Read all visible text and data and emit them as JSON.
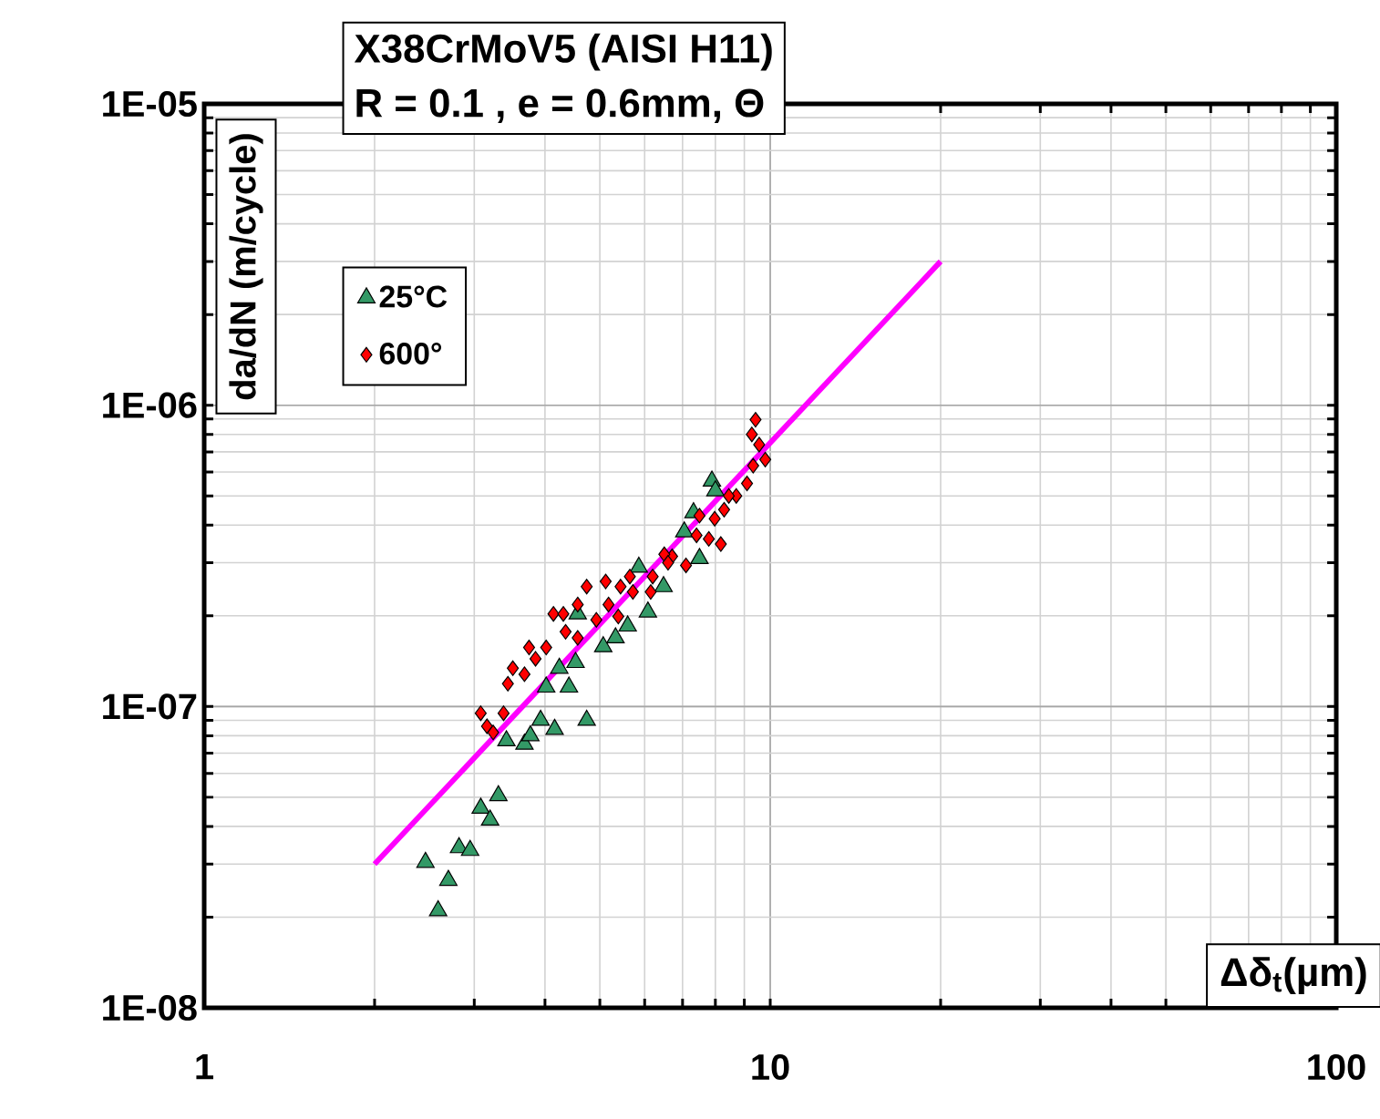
{
  "chart_data": {
    "type": "scatter",
    "title": "X38CrMoV5 (AISI H11)",
    "subtitle": "R = 0.1 , e = 0.6mm, Θ",
    "xlabel": "Δδ$_{t}$(µm)",
    "ylabel": "da/dN (m/cycle)",
    "log": "xy",
    "grid": true,
    "legend": "top left",
    "xlim": [
      1,
      100
    ],
    "ylim": [
      1e-08,
      1e-05
    ],
    "xticks": [
      1,
      10,
      100
    ],
    "yticks": [
      {
        "value": 1e-08,
        "label": "1E-08"
      },
      {
        "value": 1e-07,
        "label": "1E-07"
      },
      {
        "value": 1e-06,
        "label": "1E-06"
      },
      {
        "value": 1e-05,
        "label": "1E-05"
      }
    ],
    "series": [
      {
        "name": "25°C",
        "marker": "triangle",
        "color": "#339966",
        "x": [
          2.59,
          2.7,
          2.46,
          2.82,
          2.95,
          3.08,
          3.31,
          3.2,
          3.42,
          3.68,
          3.77,
          3.93,
          4.16,
          4.74,
          4.02,
          4.41,
          4.24,
          4.53,
          5.07,
          5.33,
          5.6,
          6.08,
          6.48,
          5.86,
          6.79,
          7.5,
          7.05,
          7.32,
          7.89,
          8.0,
          4.57
        ],
        "values": [
          2.1e-08,
          2.65e-08,
          3.04e-08,
          3.4e-08,
          3.33e-08,
          4.6e-08,
          5.06e-08,
          4.2e-08,
          7.7e-08,
          7.5e-08,
          8e-08,
          9e-08,
          8.4e-08,
          9e-08,
          1.16e-07,
          1.16e-07,
          1.34e-07,
          1.4e-07,
          1.58e-07,
          1.69e-07,
          1.85e-07,
          2.06e-07,
          2.5e-07,
          2.9e-07,
          null,
          3.1e-07,
          3.8e-07,
          4.4e-07,
          5.6e-07,
          5.2e-07,
          2.03e-07
        ]
      },
      {
        "name": "600°",
        "marker": "diamond",
        "color": "#ff0000",
        "x": [
          9.42,
          9.28,
          9.56,
          9.33,
          9.8,
          9.1,
          8.71,
          8.29,
          8.45,
          7.98,
          7.5,
          8.18,
          7.79,
          7.41,
          7.1,
          6.71,
          6.5,
          6.2,
          6.6,
          6.15,
          5.65,
          5.44,
          5.12,
          5.39,
          4.93,
          4.74,
          4.57,
          4.35,
          4.57,
          4.14,
          4.31,
          4.02,
          3.75,
          3.85,
          3.51,
          3.44,
          3.68,
          3.08,
          3.38,
          3.16,
          3.24,
          5.18,
          5.72
        ],
        "values": [
          8.95e-07,
          8e-07,
          7.4e-07,
          6.3e-07,
          6.6e-07,
          5.5e-07,
          5e-07,
          4.5e-07,
          5e-07,
          4.2e-07,
          4.3e-07,
          3.46e-07,
          3.6e-07,
          3.7e-07,
          2.94e-07,
          3.15e-07,
          3.2e-07,
          2.7e-07,
          3e-07,
          2.4e-07,
          2.7e-07,
          2.5e-07,
          2.6e-07,
          1.99e-07,
          1.94e-07,
          2.5e-07,
          2.18e-07,
          1.77e-07,
          1.69e-07,
          2.03e-07,
          2.03e-07,
          1.57e-07,
          1.57e-07,
          1.44e-07,
          1.34e-07,
          1.19e-07,
          1.28e-07,
          9.5e-08,
          9.5e-08,
          8.6e-08,
          8.2e-08,
          2.18e-07,
          2.4e-07
        ]
      },
      {
        "type": "line",
        "marker": "none",
        "line_style": "solid",
        "color": "#ff00ff",
        "x": [
          2,
          20
        ],
        "values": [
          3e-08,
          3e-06
        ]
      }
    ]
  }
}
